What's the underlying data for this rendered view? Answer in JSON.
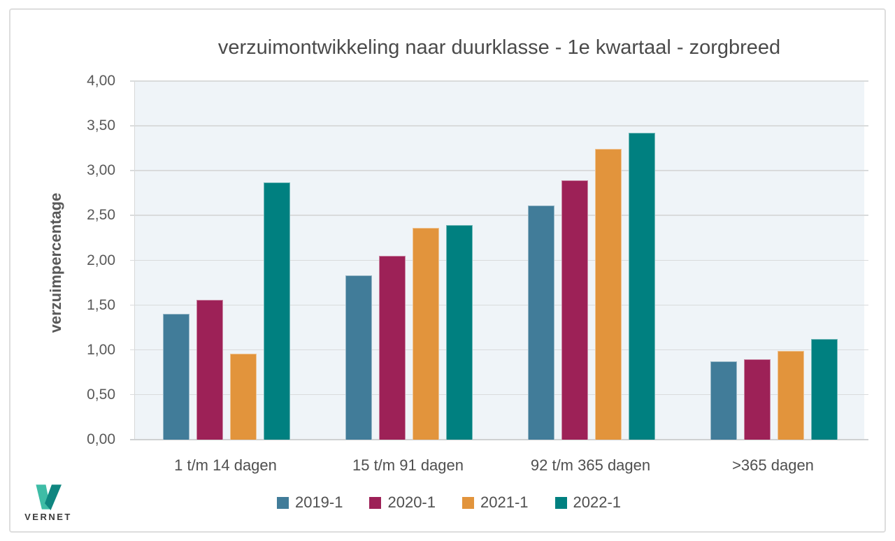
{
  "logo": {
    "text": "VERNET",
    "color_light": "#3EBCA6",
    "color_dark": "#0F8680"
  },
  "colors": {
    "plot_background": "#EFF4F8",
    "gridline": "#D9DBDC",
    "card_border": "#DDDDDD",
    "axis_text": "#595959",
    "title_text": "#4A4A4A"
  },
  "chart_data": {
    "type": "bar",
    "title": "verzuimontwikkeling naar duurklasse - 1e kwartaal - zorgbreed",
    "xlabel": "",
    "ylabel": "verzuimpercentage",
    "ylim": [
      0,
      4
    ],
    "ytick_step": 0.5,
    "ytick_labels": [
      "0,00",
      "0,50",
      "1,00",
      "1,50",
      "2,00",
      "2,50",
      "3,00",
      "3,50",
      "4,00"
    ],
    "grid": true,
    "legend_position": "bottom",
    "categories": [
      "1 t/m 14 dagen",
      "15 t/m 91 dagen",
      "92 t/m 365 dagen",
      ">365 dagen"
    ],
    "series": [
      {
        "name": "2019-1",
        "color": "#417C99",
        "values": [
          1.4,
          1.83,
          2.61,
          0.87
        ]
      },
      {
        "name": "2020-1",
        "color": "#9D2157",
        "values": [
          1.56,
          2.05,
          2.89,
          0.9
        ]
      },
      {
        "name": "2021-1",
        "color": "#E2943C",
        "values": [
          0.96,
          2.36,
          3.24,
          0.99
        ]
      },
      {
        "name": "2022-1",
        "color": "#008080",
        "values": [
          2.87,
          2.39,
          3.42,
          1.12
        ]
      }
    ]
  }
}
